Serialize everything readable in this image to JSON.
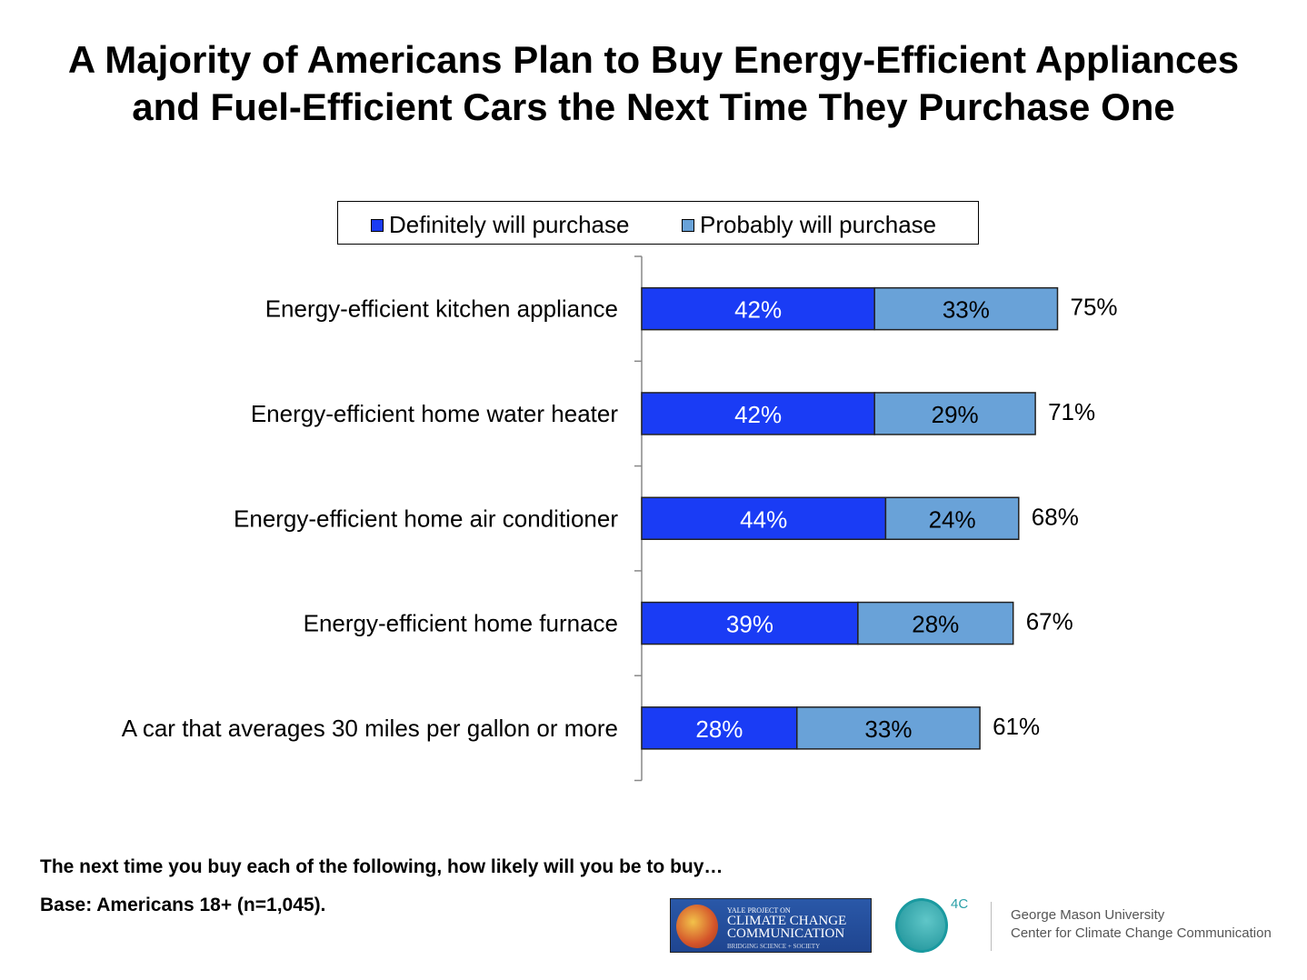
{
  "title_line1": "A Majority of Americans Plan to Buy Energy-Efficient Appliances",
  "title_line2": "and Fuel-Efficient Cars the Next Time They Purchase One",
  "chart_data": {
    "type": "bar",
    "orientation": "horizontal",
    "stacked": true,
    "categories": [
      "Energy-efficient kitchen appliance",
      "Energy-efficient home water heater",
      "Energy-efficient home air conditioner",
      "Energy-efficient home furnace",
      "A car that averages 30 miles per gallon or more"
    ],
    "series": [
      {
        "name": "Definitely will purchase",
        "color": "#1a3cf5",
        "values": [
          42,
          42,
          44,
          39,
          28
        ],
        "labels": [
          "42%",
          "42%",
          "44%",
          "39%",
          "28%"
        ]
      },
      {
        "name": "Probably will purchase",
        "color": "#69a2d8",
        "values": [
          33,
          29,
          24,
          28,
          33
        ],
        "labels": [
          "33%",
          "29%",
          "24%",
          "28%",
          "33%"
        ]
      }
    ],
    "totals": [
      75,
      71,
      68,
      67,
      61
    ],
    "total_labels": [
      "75%",
      "71%",
      "68%",
      "67%",
      "61%"
    ],
    "legend_position": "top",
    "grid": false
  },
  "footnote_question": "The next time you buy each of the following, how likely will you be to buy…",
  "footnote_base": "Base: Americans 18+ (n=1,045).",
  "logos": {
    "yale_line1": "YALE PROJECT ON",
    "yale_line2": "CLIMATE CHANGE",
    "yale_line3": "COMMUNICATION",
    "yale_tagline": "BRIDGING SCIENCE + SOCIETY",
    "fourc": "4C",
    "gmu_line1": "George Mason University",
    "gmu_line2": "Center for Climate Change Communication"
  }
}
